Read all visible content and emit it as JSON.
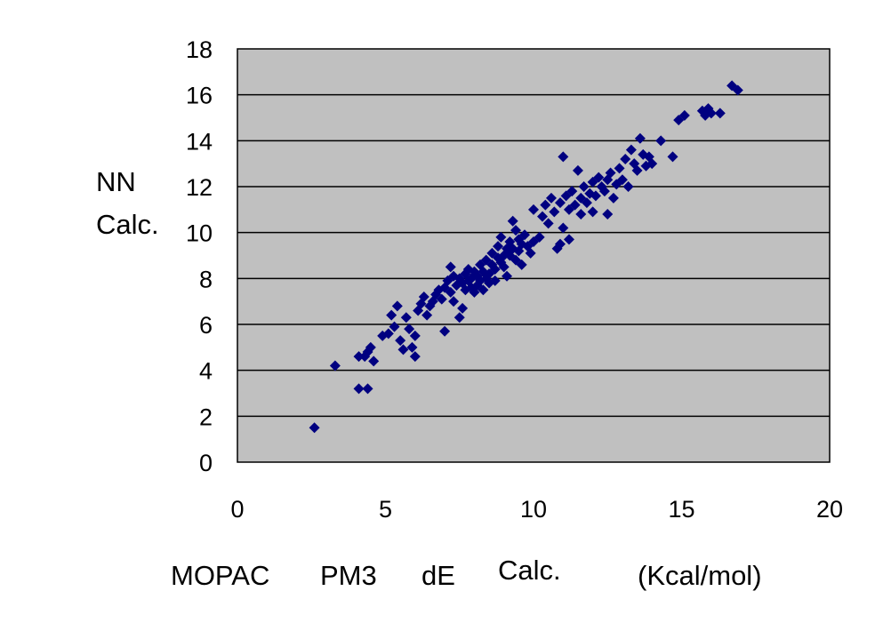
{
  "chart_data": {
    "type": "scatter",
    "title": "",
    "ylabel_line1": "NN",
    "ylabel_line2": "Calc.",
    "xlabel_parts": [
      "MOPAC",
      "PM3",
      "dE",
      "Calc.",
      "(Kcal/mol)"
    ],
    "xlim": [
      0,
      20
    ],
    "ylim": [
      0,
      18
    ],
    "xticks": [
      0,
      5,
      10,
      15,
      20
    ],
    "yticks": [
      0,
      2,
      4,
      6,
      8,
      10,
      12,
      14,
      16,
      18
    ],
    "grid": "horizontal",
    "legend": "none",
    "colors": {
      "plot_bg": "#c0c0c0",
      "marker": "#000080",
      "grid": "#000000"
    },
    "marker": "diamond",
    "points": [
      [
        2.6,
        1.5
      ],
      [
        3.3,
        4.2
      ],
      [
        4.1,
        3.2
      ],
      [
        4.4,
        3.2
      ],
      [
        4.1,
        4.6
      ],
      [
        4.3,
        4.6
      ],
      [
        4.5,
        5.0
      ],
      [
        4.6,
        4.4
      ],
      [
        4.4,
        4.8
      ],
      [
        4.9,
        5.5
      ],
      [
        5.1,
        5.6
      ],
      [
        5.3,
        5.9
      ],
      [
        5.2,
        6.4
      ],
      [
        5.4,
        6.8
      ],
      [
        5.5,
        5.3
      ],
      [
        5.6,
        4.9
      ],
      [
        5.7,
        6.3
      ],
      [
        5.8,
        5.8
      ],
      [
        5.9,
        5.0
      ],
      [
        6.0,
        4.6
      ],
      [
        6.0,
        5.5
      ],
      [
        6.1,
        6.6
      ],
      [
        6.2,
        6.9
      ],
      [
        6.3,
        7.2
      ],
      [
        6.4,
        6.4
      ],
      [
        6.5,
        6.8
      ],
      [
        6.6,
        7.0
      ],
      [
        6.7,
        7.3
      ],
      [
        6.8,
        7.5
      ],
      [
        6.9,
        7.1
      ],
      [
        7.0,
        7.6
      ],
      [
        7.0,
        5.7
      ],
      [
        7.1,
        7.9
      ],
      [
        7.2,
        7.4
      ],
      [
        7.2,
        8.5
      ],
      [
        7.3,
        7.0
      ],
      [
        7.3,
        8.1
      ],
      [
        7.4,
        7.7
      ],
      [
        7.5,
        6.3
      ],
      [
        7.5,
        8.0
      ],
      [
        7.6,
        7.8
      ],
      [
        7.6,
        6.7
      ],
      [
        7.7,
        8.2
      ],
      [
        7.7,
        7.5
      ],
      [
        7.8,
        7.9
      ],
      [
        7.8,
        8.4
      ],
      [
        7.9,
        7.6
      ],
      [
        7.9,
        8.0
      ],
      [
        8.0,
        7.4
      ],
      [
        8.0,
        8.3
      ],
      [
        8.1,
        8.1
      ],
      [
        8.1,
        7.7
      ],
      [
        8.2,
        8.6
      ],
      [
        8.2,
        7.9
      ],
      [
        8.3,
        8.3
      ],
      [
        8.3,
        7.5
      ],
      [
        8.4,
        8.0
      ],
      [
        8.4,
        8.8
      ],
      [
        8.5,
        8.2
      ],
      [
        8.5,
        7.8
      ],
      [
        8.6,
        8.6
      ],
      [
        8.6,
        9.1
      ],
      [
        8.7,
        8.4
      ],
      [
        8.7,
        7.9
      ],
      [
        8.8,
        8.9
      ],
      [
        8.8,
        9.4
      ],
      [
        8.9,
        8.7
      ],
      [
        8.9,
        9.8
      ],
      [
        9.0,
        9.0
      ],
      [
        9.0,
        8.5
      ],
      [
        9.1,
        9.3
      ],
      [
        9.1,
        8.1
      ],
      [
        9.2,
        9.6
      ],
      [
        9.2,
        9.0
      ],
      [
        9.3,
        10.5
      ],
      [
        9.3,
        9.3
      ],
      [
        9.4,
        8.8
      ],
      [
        9.4,
        10.1
      ],
      [
        9.5,
        9.7
      ],
      [
        9.5,
        9.2
      ],
      [
        9.6,
        9.5
      ],
      [
        9.6,
        8.6
      ],
      [
        9.7,
        9.9
      ],
      [
        9.8,
        9.4
      ],
      [
        9.9,
        9.1
      ],
      [
        10.0,
        9.6
      ],
      [
        10.0,
        11.0
      ],
      [
        10.2,
        9.8
      ],
      [
        10.3,
        10.7
      ],
      [
        10.4,
        11.2
      ],
      [
        10.5,
        10.4
      ],
      [
        10.6,
        11.5
      ],
      [
        10.7,
        10.9
      ],
      [
        10.8,
        9.3
      ],
      [
        10.9,
        9.5
      ],
      [
        10.9,
        11.3
      ],
      [
        11.0,
        13.3
      ],
      [
        11.0,
        10.2
      ],
      [
        11.1,
        11.6
      ],
      [
        11.2,
        9.7
      ],
      [
        11.2,
        11.0
      ],
      [
        11.3,
        11.8
      ],
      [
        11.4,
        11.2
      ],
      [
        11.5,
        12.7
      ],
      [
        11.6,
        10.8
      ],
      [
        11.6,
        11.5
      ],
      [
        11.7,
        12.0
      ],
      [
        11.8,
        11.3
      ],
      [
        11.9,
        11.7
      ],
      [
        12.0,
        12.2
      ],
      [
        12.0,
        10.9
      ],
      [
        12.1,
        11.6
      ],
      [
        12.2,
        12.4
      ],
      [
        12.3,
        12.0
      ],
      [
        12.4,
        11.8
      ],
      [
        12.5,
        12.3
      ],
      [
        12.5,
        10.8
      ],
      [
        12.6,
        12.6
      ],
      [
        12.7,
        11.5
      ],
      [
        12.8,
        12.1
      ],
      [
        12.9,
        12.8
      ],
      [
        13.0,
        12.3
      ],
      [
        13.1,
        13.2
      ],
      [
        13.2,
        12.0
      ],
      [
        13.3,
        13.6
      ],
      [
        13.4,
        13.0
      ],
      [
        13.5,
        12.7
      ],
      [
        13.6,
        14.1
      ],
      [
        13.7,
        13.4
      ],
      [
        13.8,
        12.9
      ],
      [
        13.9,
        13.3
      ],
      [
        14.0,
        13.0
      ],
      [
        14.3,
        14.0
      ],
      [
        14.7,
        13.3
      ],
      [
        14.9,
        14.9
      ],
      [
        15.1,
        15.1
      ],
      [
        15.7,
        15.3
      ],
      [
        15.8,
        15.1
      ],
      [
        15.9,
        15.4
      ],
      [
        16.0,
        15.2
      ],
      [
        16.3,
        15.2
      ],
      [
        16.7,
        16.4
      ],
      [
        16.9,
        16.2
      ]
    ]
  }
}
